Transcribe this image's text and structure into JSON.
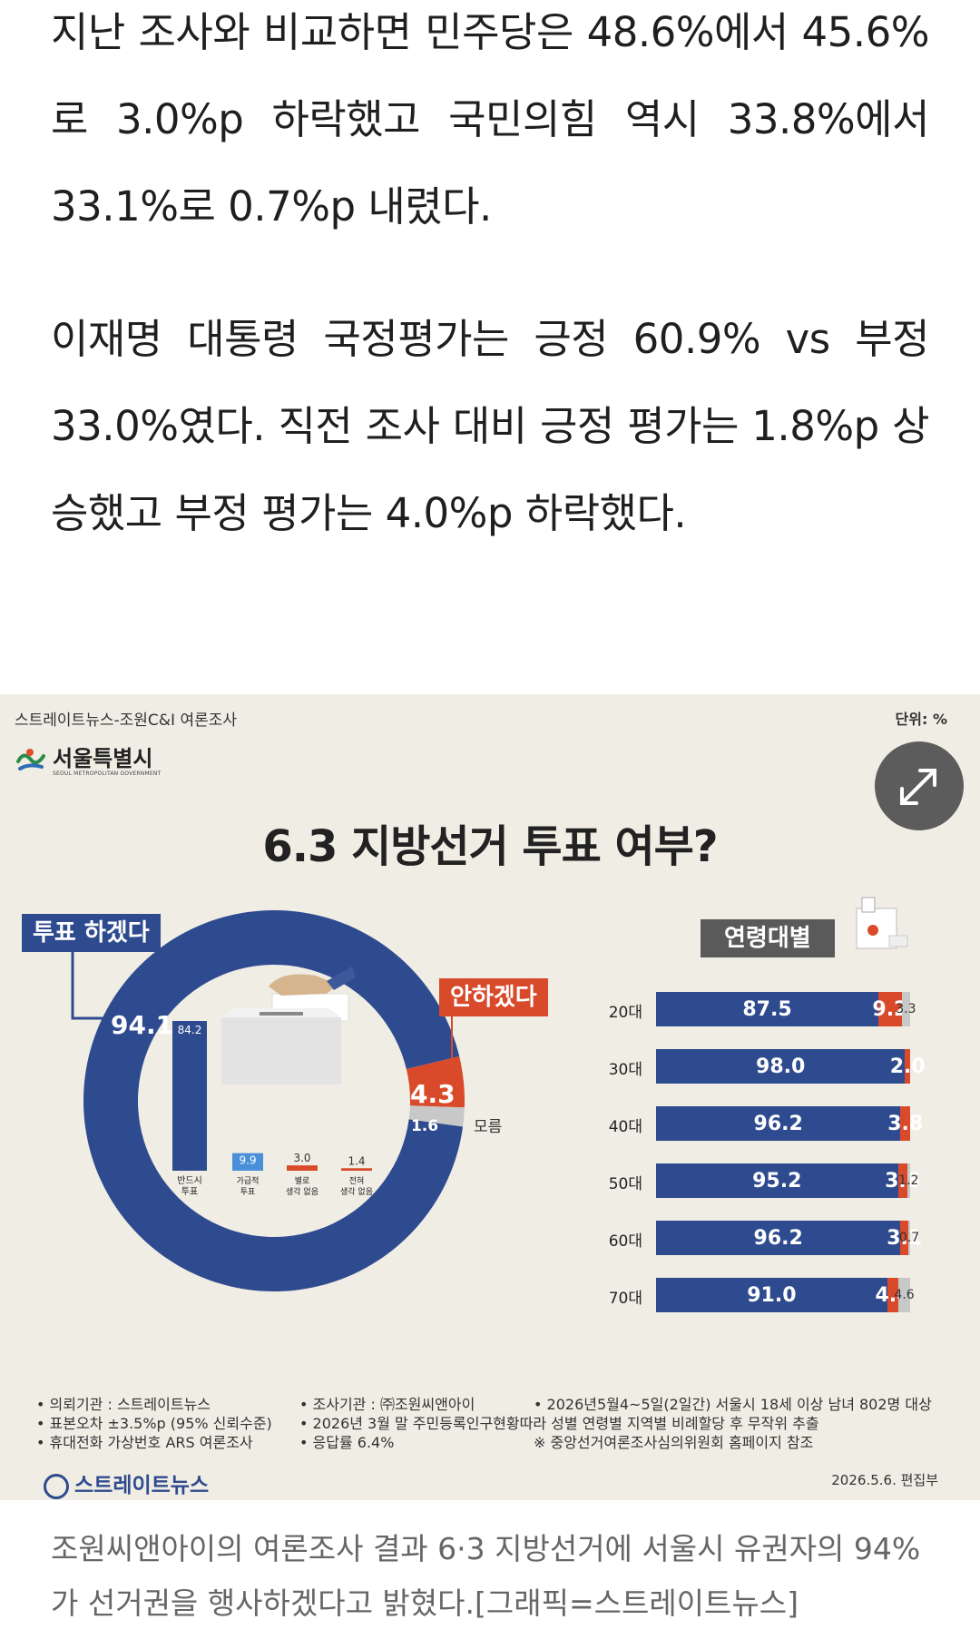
{
  "article": {
    "para1": "지난 조사와 비교하면 민주당은 48.6%에서 45.6%로 3.0%p 하락했고 국민의힘 역시 33.8%에서 33.1%로 0.7%p 내렸다.",
    "para2": "이재명 대통령 국정평가는 긍정 60.9% vs 부정 33.0%였다. 직전 조사 대비 긍정 평가는 1.8%p 상승했고 부정 평가는 4.0%p 하락했다.",
    "caption": "조원씨앤아이의 여론조사 결과 6·3 지방선거에 서울시 유권자의 94%가 선거권을 행사하겠다고 밝혔다.[그래픽=스트레이트뉴스]"
  },
  "infographic": {
    "source_header": "스트레이트뉴스-조원C&I 여론조사",
    "unit": "단위: %",
    "seoul_name": "서울특별시",
    "seoul_eng": "SEOUL METROPOLITAN GOVERNMENT",
    "title": "6.3 지방선거 투표 여부?",
    "tag_vote": "투표 하겠다",
    "tag_novote": "안하겠다",
    "tag_age": "연령대별",
    "expand_icon": "expand-arrows-icon",
    "colors": {
      "blue": "#2f4b8f",
      "red": "#d94a2b",
      "gray": "#c8c8c8",
      "light_blue": "#4a90d9"
    }
  },
  "chart_data": [
    {
      "type": "pie",
      "categories": [
        "투표 하겠다",
        "안하겠다",
        "모름"
      ],
      "values": [
        94.1,
        4.3,
        1.6
      ],
      "value_labels": [
        "94.1",
        "4.3",
        "1.6"
      ],
      "dontknow_label": "모름"
    },
    {
      "type": "bar",
      "categories": [
        "반드시 투표",
        "가급적 투표",
        "별로 생각 없음",
        "전혀 생각 없음"
      ],
      "category_lines": [
        [
          "반드시",
          "투표"
        ],
        [
          "가급적",
          "투표"
        ],
        [
          "별로",
          "생각 없음"
        ],
        [
          "전혀",
          "생각 없음"
        ]
      ],
      "values": [
        84.2,
        9.9,
        3.0,
        1.4
      ],
      "value_labels": [
        "84.2",
        "9.9",
        "3.0",
        "1.4"
      ]
    },
    {
      "type": "bar",
      "stacked": true,
      "orientation": "horizontal",
      "categories": [
        "20대",
        "30대",
        "40대",
        "50대",
        "60대",
        "70대"
      ],
      "series": [
        {
          "values": [
            87.5,
            98.0,
            96.2,
            95.2,
            96.2,
            91.0
          ],
          "labels": [
            "87.5",
            "98.0",
            "96.2",
            "95.2",
            "96.2",
            "91.0"
          ]
        },
        {
          "values": [
            9.2,
            2.0,
            3.8,
            3.6,
            3.1,
            4.4
          ],
          "labels": [
            "9.2",
            "2.0",
            "3.8",
            "3.6",
            "3.1",
            "4.4"
          ]
        },
        {
          "values": [
            3.3,
            0,
            0,
            1.2,
            0.7,
            4.6
          ],
          "labels": [
            "3.3",
            "",
            "",
            "1.2",
            "0.7",
            "4.6"
          ]
        }
      ]
    }
  ],
  "footer": {
    "notes": [
      [
        "• 의뢰기관 : 스트레이트뉴스",
        "• 조사기관 : ㈜조원씨앤아이",
        "• 2026년5월4~5일(2일간) 서울시 18세 이상 남녀 802명 대상"
      ],
      [
        "• 표본오차 ±3.5%p (95% 신뢰수준)",
        "• 2026년 3월 말 주민등록인구현황따라 성별 연령별 지역별 비례할당 후 무작위 추출",
        ""
      ],
      [
        "• 휴대전화 가상번호 ARS 여론조사",
        "• 응답률 6.4%",
        "※ 중앙선거여론조사심의위원회 홈페이지 참조"
      ]
    ],
    "logo": "스트레이트뉴스",
    "date": "2026.5.6. 편집부"
  }
}
